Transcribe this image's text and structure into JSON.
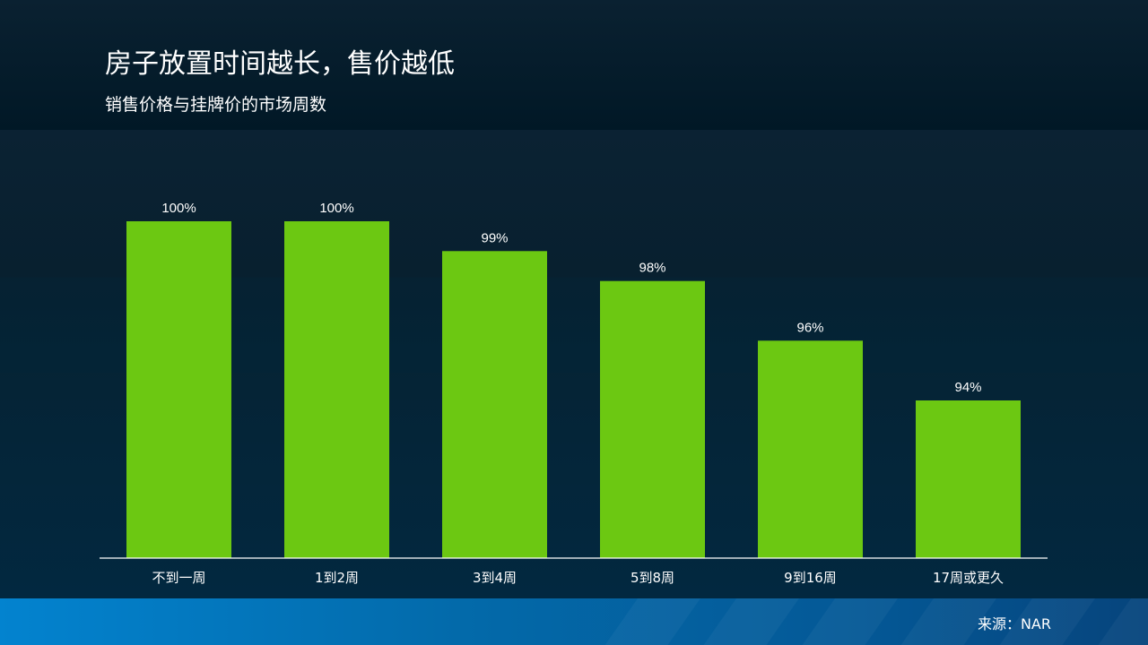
{
  "slide": {
    "title": "房子放置时间越长，售价越低",
    "subtitle": "销售价格与挂牌价的市场周数",
    "source": "来源：NAR"
  },
  "colors": {
    "bar": "#6cc812",
    "axis": "#ffffff",
    "text": "#ffffff"
  },
  "chart_data": {
    "type": "bar",
    "title": "房子放置时间越长，售价越低",
    "subtitle": "销售价格与挂牌价的市场周数",
    "categories": [
      "不到一周",
      "1到2周",
      "3到4周",
      "5到8周",
      "9到16周",
      "17周或更久"
    ],
    "values": [
      100,
      100,
      99,
      98,
      96,
      94
    ],
    "value_labels": [
      "100%",
      "100%",
      "99%",
      "98%",
      "96%",
      "94%"
    ],
    "ylim": [
      85,
      100
    ],
    "grid": false,
    "legend": "none"
  }
}
